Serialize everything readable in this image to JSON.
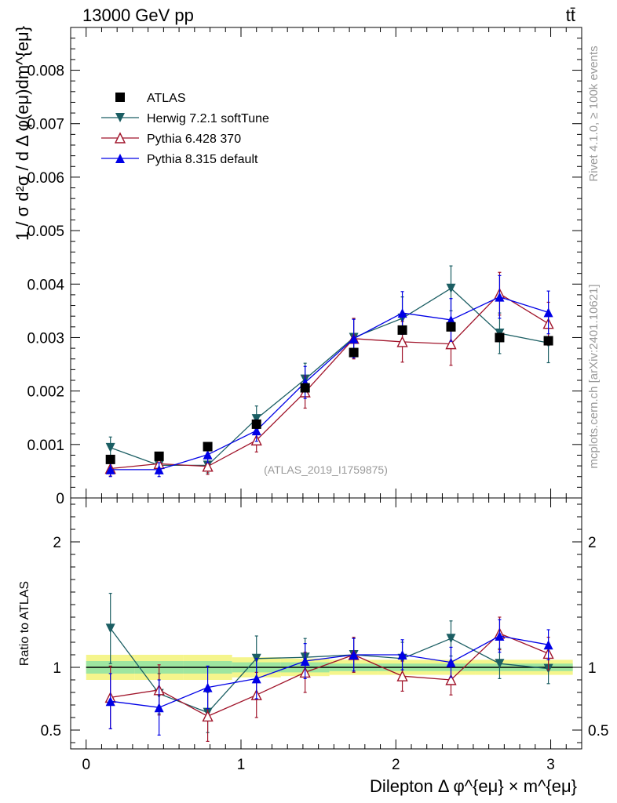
{
  "header": {
    "energy_label": "13000 GeV pp",
    "process_label": "tt̄"
  },
  "side_labels": {
    "rivet": "Rivet 4.1.0, ≥ 100k events",
    "mcplots": "mcplots.cern.ch [arXiv:2401.10621]"
  },
  "analysis_label": "(ATLAS_2019_I1759875)",
  "legend": [
    {
      "label": "ATLAS",
      "color": "#000000",
      "marker": "square"
    },
    {
      "label": "Herwig 7.2.1 softTune",
      "color": "#1b5e63",
      "marker": "triangle-down"
    },
    {
      "label": "Pythia 6.428 370",
      "color": "#a0142a",
      "marker": "triangle-open"
    },
    {
      "label": "Pythia 8.315 default",
      "color": "#0000e6",
      "marker": "triangle-up"
    }
  ],
  "chart_data": [
    {
      "type": "scatter",
      "title": "",
      "xlabel": "Dilepton Δ φ^{eμ} × m^{eμ}",
      "ylabel": "1 / σ d²σ / d Δ φ(eμ)dm^{eμ}",
      "xlim": [
        -0.1,
        3.2
      ],
      "ylim": [
        0,
        0.0088
      ],
      "x_ticks": [
        0,
        1,
        2,
        3
      ],
      "x_tick_labels": [
        "0",
        "1",
        "2",
        "3"
      ],
      "y_ticks": [
        0,
        0.001,
        0.002,
        0.003,
        0.004,
        0.005,
        0.006,
        0.007,
        0.008
      ],
      "y_tick_labels": [
        "0",
        "0.001",
        "0.002",
        "0.003",
        "0.004",
        "0.005",
        "0.006",
        "0.007",
        "0.008"
      ],
      "x": [
        0.157,
        0.471,
        0.785,
        1.1,
        1.414,
        1.728,
        2.042,
        2.356,
        2.67,
        2.985
      ],
      "series": [
        {
          "name": "ATLAS",
          "values": [
            0.00072,
            0.00078,
            0.00096,
            0.00138,
            0.00206,
            0.00272,
            0.00314,
            0.0032,
            0.003,
            0.00294
          ],
          "errors": [
            4e-05,
            4e-05,
            4e-05,
            5e-05,
            6e-05,
            8e-05,
            8e-05,
            9e-05,
            9e-05,
            9e-05
          ]
        },
        {
          "name": "Herwig 7.2.1 softTune",
          "values": [
            0.00094,
            0.00061,
            0.00061,
            0.00148,
            0.00222,
            0.003,
            0.00336,
            0.00392,
            0.00308,
            0.0029
          ],
          "errors": [
            0.0002,
            0.00012,
            0.00014,
            0.00024,
            0.0003,
            0.00035,
            0.0004,
            0.00042,
            0.00038,
            0.00037
          ]
        },
        {
          "name": "Pythia 6.428 370",
          "values": [
            0.00055,
            0.00064,
            0.00059,
            0.00108,
            0.00198,
            0.00298,
            0.00292,
            0.00288,
            0.00382,
            0.00326
          ],
          "errors": [
            0.00014,
            0.00015,
            0.00015,
            0.00022,
            0.0003,
            0.00038,
            0.00038,
            0.0004,
            0.0004,
            0.0004
          ]
        },
        {
          "name": "Pythia 8.315 default",
          "values": [
            0.00053,
            0.00053,
            0.00081,
            0.00126,
            0.00216,
            0.00298,
            0.00346,
            0.00333,
            0.00376,
            0.00347
          ],
          "errors": [
            0.00013,
            0.00013,
            0.00015,
            0.0002,
            0.0003,
            0.00036,
            0.0004,
            0.0004,
            0.0004,
            0.0004
          ]
        }
      ]
    },
    {
      "type": "scatter",
      "title": "",
      "xlabel": "Dilepton Δ φ^{eμ} × m^{eμ}",
      "ylabel": "Ratio to ATLAS",
      "xlim": [
        -0.1,
        3.2
      ],
      "ylim": [
        0.35,
        2.35
      ],
      "y_ticks": [
        0.5,
        1,
        2
      ],
      "y_tick_labels": [
        "0.5",
        "1",
        "2"
      ],
      "x": [
        0.157,
        0.471,
        0.785,
        1.1,
        1.414,
        1.728,
        2.042,
        2.356,
        2.67,
        2.985
      ],
      "band_inner": [
        0.05,
        0.05,
        0.05,
        0.04,
        0.04,
        0.03,
        0.03,
        0.03,
        0.03,
        0.03
      ],
      "band_outer": [
        0.1,
        0.1,
        0.1,
        0.08,
        0.07,
        0.06,
        0.06,
        0.06,
        0.06,
        0.06
      ],
      "series": [
        {
          "name": "Herwig 7.2.1 softTune",
          "values": [
            1.31,
            0.79,
            0.64,
            1.07,
            1.08,
            1.1,
            1.07,
            1.23,
            1.03,
            0.99
          ],
          "errors": [
            0.28,
            0.16,
            0.16,
            0.18,
            0.15,
            0.13,
            0.13,
            0.14,
            0.12,
            0.12
          ]
        },
        {
          "name": "Pythia 6.428 370",
          "values": [
            0.76,
            0.82,
            0.61,
            0.78,
            0.96,
            1.1,
            0.93,
            0.9,
            1.27,
            1.11
          ],
          "errors": [
            0.25,
            0.2,
            0.2,
            0.18,
            0.16,
            0.14,
            0.12,
            0.12,
            0.13,
            0.13
          ]
        },
        {
          "name": "Pythia 8.315 default",
          "values": [
            0.73,
            0.68,
            0.84,
            0.91,
            1.05,
            1.1,
            1.1,
            1.04,
            1.25,
            1.18
          ],
          "errors": [
            0.22,
            0.22,
            0.17,
            0.16,
            0.14,
            0.13,
            0.12,
            0.12,
            0.13,
            0.12
          ]
        }
      ]
    }
  ]
}
